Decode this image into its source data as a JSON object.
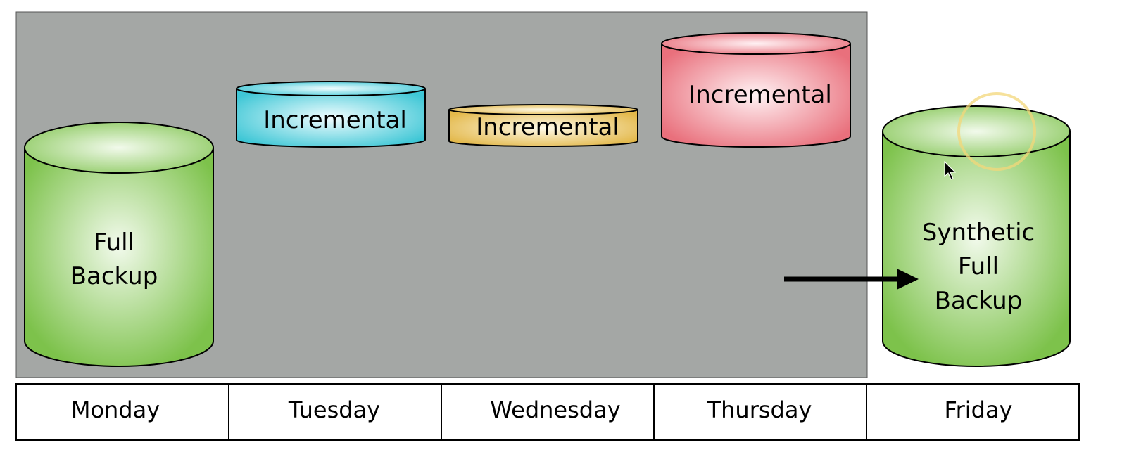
{
  "cylinders": [
    {
      "id": "monday",
      "lines": [
        "Full",
        "Backup"
      ],
      "color": "green"
    },
    {
      "id": "tuesday",
      "lines": [
        "Incremental"
      ],
      "color": "cyan"
    },
    {
      "id": "wednesday",
      "lines": [
        "Incremental"
      ],
      "color": "gold"
    },
    {
      "id": "thursday",
      "lines": [
        "Incremental"
      ],
      "color": "pink"
    },
    {
      "id": "friday",
      "lines": [
        "Synthetic",
        "Full",
        "Backup"
      ],
      "color": "green"
    }
  ],
  "days": [
    "Monday",
    "Tuesday",
    "Wednesday",
    "Thursday",
    "Friday"
  ],
  "colors": {
    "panel": "#a4a7a5",
    "green_center": "#f2faec",
    "green_edge": "#7dc24b",
    "cyan_center": "#f2fdff",
    "cyan_edge": "#3fc7d6",
    "gold_center": "#fffbea",
    "gold_edge": "#e3b84a",
    "pink_center": "#fff2f4",
    "pink_edge": "#e9707c",
    "highlight_ring": "#f3d77a"
  }
}
